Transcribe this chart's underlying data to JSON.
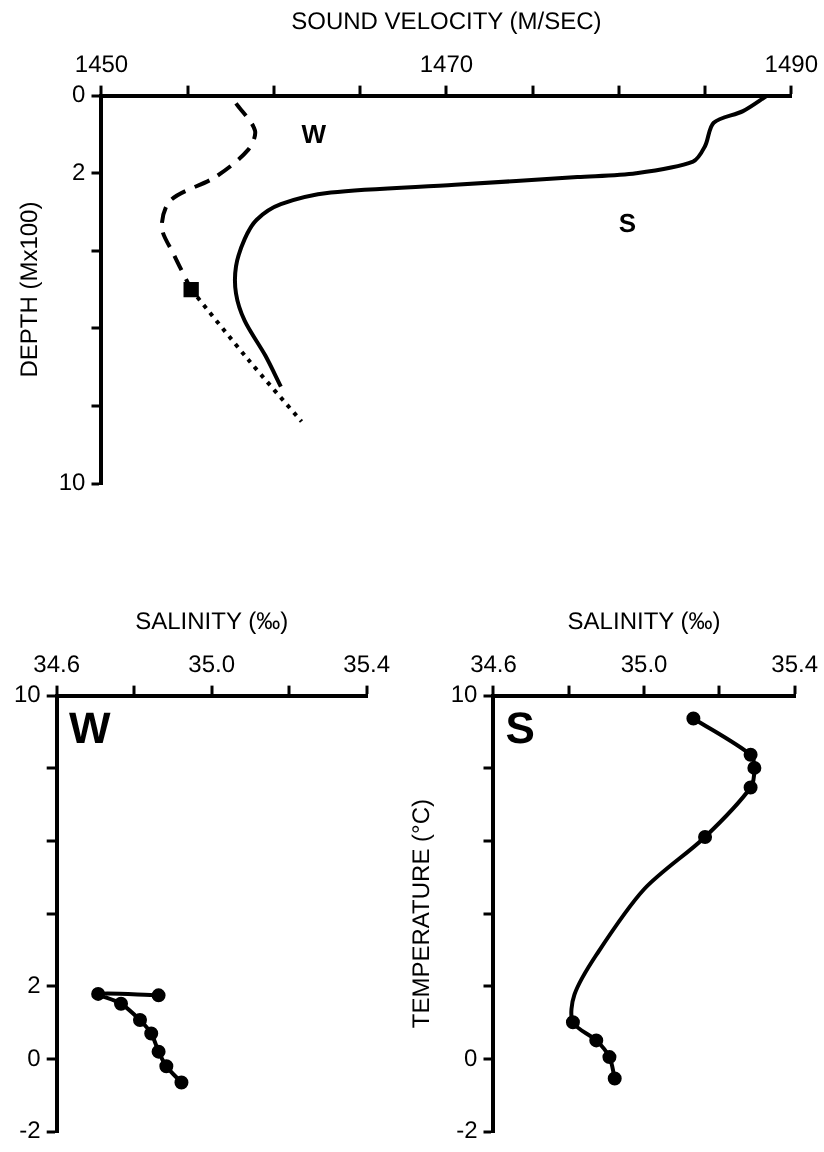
{
  "chart_data": [
    {
      "type": "line",
      "xlabel": "SOUND VELOCITY (M/SEC)",
      "ylabel": "DEPTH (Mx100)",
      "xlim": [
        1450,
        1490
      ],
      "xticks": [
        1450,
        {
          "value": 1455,
          "label": null
        },
        {
          "value": 1460,
          "label": null
        },
        {
          "value": 1465,
          "label": null
        },
        1470,
        {
          "value": 1475,
          "label": null
        },
        {
          "value": 1480,
          "label": null
        },
        {
          "value": 1485,
          "label": null
        },
        1490
      ],
      "ylim": [
        10,
        0
      ],
      "yticks": [
        0,
        2,
        {
          "value": 4,
          "label": null
        },
        {
          "value": 6,
          "label": null
        },
        {
          "value": 8,
          "label": null
        },
        10
      ],
      "grid": false,
      "legend": false,
      "series": [
        {
          "type": "line",
          "color": "#000000",
          "line_style": "solid",
          "marker": "none",
          "x": [
            1488.6,
            1487.2,
            1485.5,
            1485.0,
            1484.3,
            1481.0,
            1477.6,
            1470.5,
            1463.3,
            1460.4,
            1459.0,
            1458.3,
            1457.8,
            1457.8,
            1458.3,
            1459.5,
            1460.4
          ],
          "values": [
            0,
            0.4,
            0.7,
            1.3,
            1.7,
            2.0,
            2.1,
            2.3,
            2.5,
            2.8,
            3.2,
            3.7,
            4.4,
            5.1,
            5.8,
            6.7,
            7.5
          ]
        },
        {
          "type": "line",
          "color": "#000000",
          "line_style": "dashed",
          "marker": "none",
          "x": [
            1457.8,
            1458.9,
            1458.5,
            1456.6,
            1454.0,
            1453.5,
            1454.2,
            1455.2
          ],
          "values": [
            0.2,
            0.9,
            1.4,
            2.1,
            2.7,
            3.4,
            4.1,
            5.0
          ]
        },
        {
          "type": "line",
          "color": "#000000",
          "line_style": "dotted",
          "marker": "none",
          "x": [
            1455.2,
            1458.5,
            1461.6
          ],
          "values": [
            5.0,
            6.8,
            8.4
          ]
        },
        {
          "type": "scatter",
          "color": "#000000",
          "marker": "square",
          "x": [
            1455.2
          ],
          "values": [
            5.0
          ]
        }
      ],
      "annotations": [
        "W",
        "S"
      ]
    },
    {
      "type": "line",
      "xlabel": "SALINITY (‰)",
      "xlim": [
        34.6,
        35.4
      ],
      "xticks": [
        {
          "value": 34.6,
          "label": "34.6"
        },
        {
          "value": 34.8,
          "label": null
        },
        {
          "value": 35,
          "label": "35.0"
        },
        {
          "value": 35.2,
          "label": null
        },
        {
          "value": 35.4,
          "label": "35.4"
        }
      ],
      "ylim": [
        -2,
        10
      ],
      "yticks": [
        -2,
        0,
        2,
        {
          "value": 4,
          "label": null
        },
        {
          "value": 6,
          "label": null
        },
        {
          "value": 8,
          "label": null
        },
        10
      ],
      "grid": false,
      "legend": false,
      "series": [
        {
          "type": "line",
          "color": "#000000",
          "line_style": "solid",
          "marker": "circle",
          "x": [
            34.863,
            34.707,
            34.766,
            34.815,
            34.844,
            34.863,
            34.883,
            34.922
          ],
          "values": [
            1.75,
            1.79,
            1.52,
            1.07,
            0.7,
            0.2,
            -0.2,
            -0.65
          ]
        }
      ],
      "annotations": [
        "W"
      ]
    },
    {
      "type": "line",
      "xlabel": "SALINITY (‰)",
      "ylabel": "TEMPERATURE (°C)",
      "xlim": [
        34.6,
        35.4
      ],
      "xticks": [
        {
          "value": 34.6,
          "label": "34.6"
        },
        {
          "value": 34.8,
          "label": null
        },
        {
          "value": 35,
          "label": "35.0"
        },
        {
          "value": 35.2,
          "label": null
        },
        {
          "value": 35.4,
          "label": "35.4"
        }
      ],
      "ylim": [
        -2,
        10
      ],
      "yticks": [
        -2,
        0,
        {
          "value": 2,
          "label": null
        },
        {
          "value": 4,
          "label": null
        },
        {
          "value": 6,
          "label": null
        },
        {
          "value": 8,
          "label": null
        },
        10
      ],
      "grid": false,
      "legend": false,
      "series": [
        {
          "type": "line",
          "color": "#000000",
          "line_style": "solid",
          "marker": "none",
          "x": [
            35.131,
            35.283,
            35.293,
            35.283,
            35.162,
            35.0,
            34.873,
            34.815,
            34.811,
            34.873,
            34.908,
            34.922
          ],
          "values": [
            9.37,
            8.37,
            8.01,
            7.47,
            6.11,
            4.67,
            2.86,
            1.77,
            1.01,
            0.51,
            0.05,
            -0.54
          ]
        },
        {
          "type": "scatter",
          "color": "#000000",
          "marker": "circle",
          "x": [
            35.131,
            35.283,
            35.293,
            35.283,
            35.162,
            34.811,
            34.873,
            34.908,
            34.922
          ],
          "values": [
            9.37,
            8.37,
            8.01,
            7.47,
            6.11,
            1.01,
            0.51,
            0.05,
            -0.54
          ]
        }
      ],
      "annotations": [
        "S"
      ]
    }
  ]
}
